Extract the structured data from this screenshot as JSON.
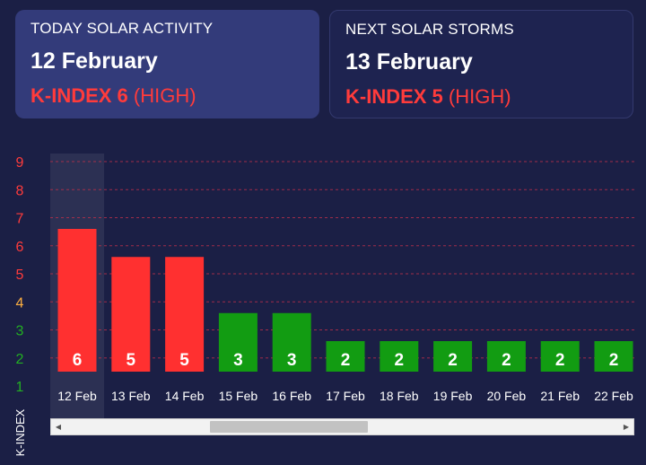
{
  "today": {
    "label": "TODAY SOLAR ACTIVITY",
    "date": "12 February",
    "kindex_strong": "K-INDEX 6",
    "kindex_level": "(HIGH)"
  },
  "next": {
    "label": "NEXT SOLAR STORMS",
    "date": "13 February",
    "kindex_strong": "K-INDEX 5",
    "kindex_level": "(HIGH)"
  },
  "colors": {
    "background": "#1b1f45",
    "high": "#ff3030",
    "low": "#129c12",
    "tick_high": "#ff3b3b",
    "tick_mid": "#ffb040",
    "tick_low": "#22b022",
    "grid": "#c0304a"
  },
  "chart_data": {
    "type": "bar",
    "ylabel": "K-INDEX",
    "ylim": [
      1,
      9
    ],
    "yticks": [
      1,
      2,
      3,
      4,
      5,
      6,
      7,
      8,
      9
    ],
    "grid": true,
    "highlighted_category": "12 Feb",
    "categories": [
      "12 Feb",
      "13 Feb",
      "14 Feb",
      "15 Feb",
      "16 Feb",
      "17 Feb",
      "18 Feb",
      "19 Feb",
      "20 Feb",
      "21 Feb",
      "22 Feb"
    ],
    "values": [
      6,
      5,
      5,
      3,
      3,
      2,
      2,
      2,
      2,
      2,
      2
    ],
    "bar_tops": [
      6.6,
      5.6,
      5.6,
      3.6,
      3.6,
      2.6,
      2.6,
      2.6,
      2.6,
      2.6,
      2.6
    ]
  },
  "scrollbar": {
    "left_arrow": "◀",
    "right_arrow": "▶"
  }
}
